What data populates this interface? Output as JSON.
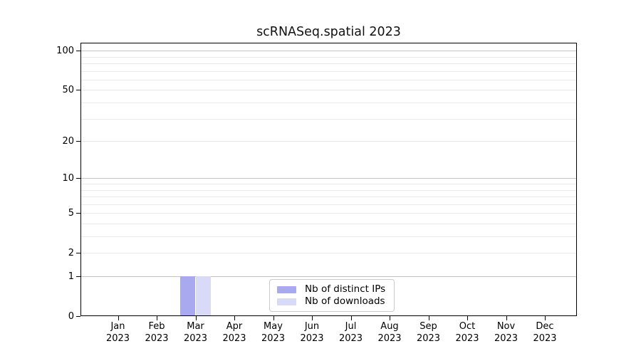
{
  "chart_data": {
    "type": "bar",
    "title": "scRNASeq.spatial 2023",
    "categories": [
      "Jan",
      "Feb",
      "Mar",
      "Apr",
      "May",
      "Jun",
      "Jul",
      "Aug",
      "Sep",
      "Oct",
      "Nov",
      "Dec"
    ],
    "year_label": "2023",
    "series": [
      {
        "name": "Nb of distinct IPs",
        "color": "#a9a9f0",
        "values": [
          0,
          0,
          1,
          0,
          0,
          0,
          0,
          0,
          0,
          0,
          0,
          0
        ]
      },
      {
        "name": "Nb of downloads",
        "color": "#d9d9f8",
        "values": [
          0,
          0,
          1,
          0,
          0,
          0,
          0,
          0,
          0,
          0,
          0,
          0
        ]
      }
    ],
    "xlabel": "",
    "ylabel": "",
    "yscale": "log1p",
    "ylim": [
      0,
      115
    ],
    "yticks": [
      0,
      1,
      2,
      5,
      10,
      20,
      50,
      100
    ],
    "gridlines": {
      "major": [
        1,
        10,
        100
      ],
      "minor": [
        2,
        3,
        4,
        5,
        6,
        7,
        8,
        9,
        20,
        30,
        40,
        50,
        60,
        70,
        80,
        90
      ]
    },
    "legend": {
      "position": "inside-bottom-center",
      "border_color": "#cbcbcb"
    },
    "colors": {
      "background": "#ffffff",
      "axis": "#000000",
      "grid_major": "#c4c4c4",
      "grid_minor": "#eaeaea"
    }
  }
}
